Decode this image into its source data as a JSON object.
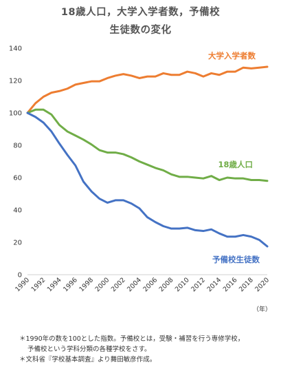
{
  "chart_data": {
    "type": "line",
    "title_line1": "18歳人口，大学入学者数，予備校",
    "title_line2": "生徒数の変化",
    "x": [
      1990,
      1991,
      1992,
      1993,
      1994,
      1995,
      1996,
      1997,
      1998,
      1999,
      2000,
      2001,
      2002,
      2003,
      2004,
      2005,
      2006,
      2007,
      2008,
      2009,
      2010,
      2011,
      2012,
      2013,
      2014,
      2015,
      2016,
      2017,
      2018,
      2019,
      2020
    ],
    "x_tick_labels": [
      "1990",
      "1992",
      "1994",
      "1996",
      "1998",
      "2000",
      "2002",
      "2004",
      "2006",
      "2008",
      "2010",
      "2012",
      "2014",
      "2016",
      "2018",
      "2020"
    ],
    "x_unit": "（年）",
    "ylim": [
      0,
      140
    ],
    "y_ticks": [
      "0",
      "20",
      "40",
      "60",
      "80",
      "100",
      "120",
      "140"
    ],
    "grid": false,
    "series": [
      {
        "name": "大学入学者数",
        "color": "#ed7d31",
        "values": [
          100,
          106,
          110,
          112.5,
          113.5,
          115,
          117.5,
          118.5,
          119.5,
          119.5,
          121.5,
          123,
          124,
          123,
          121.5,
          122.5,
          122.5,
          124.5,
          123.5,
          123.5,
          125.5,
          124.5,
          122.5,
          124.5,
          123.5,
          125.5,
          125.5,
          128,
          127.5,
          128,
          128.5
        ]
      },
      {
        "name": "18歳人口",
        "color": "#70ad47",
        "values": [
          100,
          102,
          102,
          99,
          92.5,
          88.5,
          86,
          83.5,
          80.5,
          77,
          75.5,
          75.5,
          74.5,
          72.5,
          70,
          68,
          66,
          64.5,
          62,
          60.5,
          60.5,
          60,
          59.5,
          61,
          58.5,
          60,
          59.5,
          59.5,
          58.5,
          58.5,
          58
        ]
      },
      {
        "name": "予備校生徒数",
        "color": "#4472c4",
        "values": [
          100,
          97.5,
          94,
          88.5,
          81,
          74,
          67.5,
          57.5,
          51.5,
          47,
          44.5,
          46,
          46,
          44,
          41,
          35.5,
          32.5,
          30,
          28.5,
          28.5,
          29,
          27.5,
          27,
          28,
          25.5,
          23.5,
          23.5,
          24.5,
          23.5,
          21.5,
          17.5
        ]
      }
    ]
  },
  "notes": {
    "line1": "＊1990年の数を100とした指数。予備校とは，受験・補習を行う専修学校，",
    "line2": "予備校という学科分類の各種学校をさす。",
    "line3": "＊文科省『学校基本調査』より舞田敏彦作成。"
  }
}
